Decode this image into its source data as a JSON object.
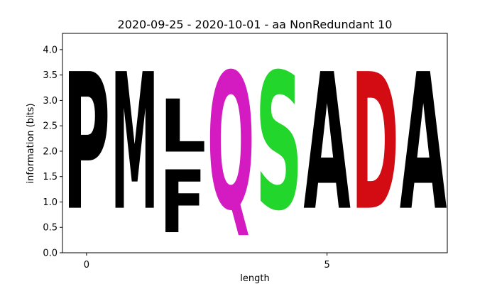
{
  "chart_data": {
    "type": "sequence-logo",
    "title": "2020-09-25 - 2020-10-01 - aa NonRedundant 10",
    "xlabel": "length",
    "ylabel": "information (bits)",
    "xlim": [
      -0.5,
      7.5
    ],
    "ylim": [
      0,
      4.32
    ],
    "xticks": [
      0,
      5
    ],
    "yticks": [
      0.0,
      0.5,
      1.0,
      1.5,
      2.0,
      2.5,
      3.0,
      3.5,
      4.0
    ],
    "ytick_labels": [
      "0.0",
      "0.5",
      "1.0",
      "1.5",
      "2.0",
      "2.5",
      "3.0",
      "3.5",
      "4.0"
    ],
    "positions": [
      {
        "x": 0,
        "stack": [
          {
            "letter": "P",
            "start": 0.0,
            "height": 4.32,
            "color": "#000000"
          }
        ]
      },
      {
        "x": 1,
        "stack": [
          {
            "letter": "M",
            "start": 0.0,
            "height": 4.32,
            "color": "#000000"
          }
        ]
      },
      {
        "x": 2,
        "stack": [
          {
            "letter": "F",
            "start": 0.0,
            "height": 1.98,
            "color": "#000000"
          },
          {
            "letter": "L",
            "start": 1.65,
            "height": 1.68,
            "color": "#000000"
          }
        ]
      },
      {
        "x": 3,
        "stack": [
          {
            "letter": "Q",
            "start": 0.0,
            "height": 4.32,
            "color": "#d41bc2"
          }
        ]
      },
      {
        "x": 4,
        "stack": [
          {
            "letter": "S",
            "start": 0.0,
            "height": 4.32,
            "color": "#22d62b"
          }
        ]
      },
      {
        "x": 5,
        "stack": [
          {
            "letter": "A",
            "start": 0.0,
            "height": 4.32,
            "color": "#000000"
          }
        ]
      },
      {
        "x": 6,
        "stack": [
          {
            "letter": "D",
            "start": 0.0,
            "height": 4.32,
            "color": "#d30c14"
          }
        ]
      },
      {
        "x": 7,
        "stack": [
          {
            "letter": "A",
            "start": 0.0,
            "height": 4.32,
            "color": "#000000"
          }
        ]
      }
    ],
    "grid": false,
    "legend": "none"
  }
}
